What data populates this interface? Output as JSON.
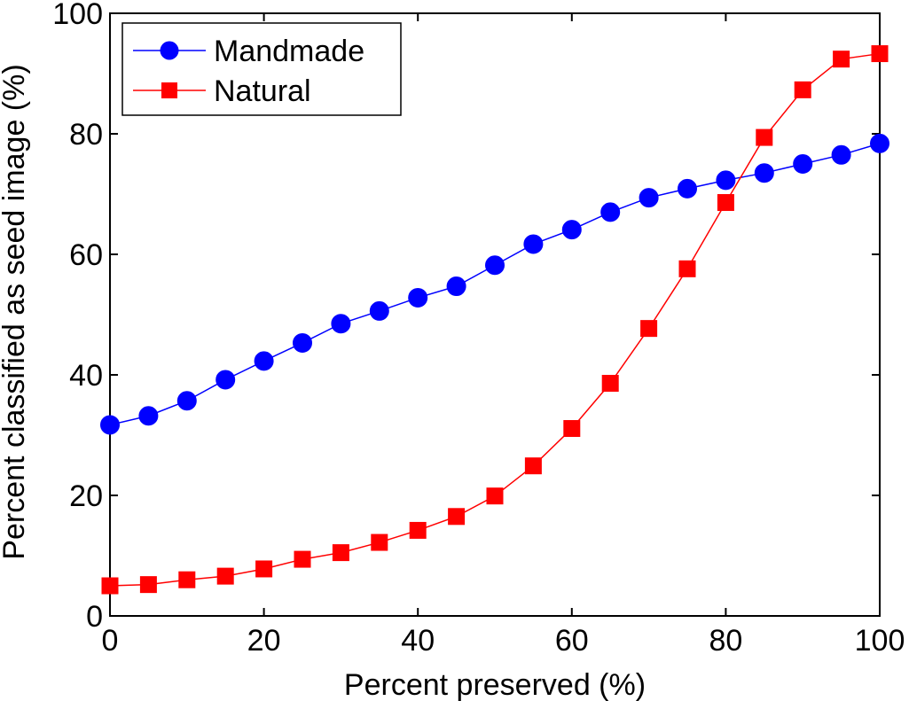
{
  "chart_data": {
    "type": "line",
    "title": "",
    "xlabel": "Percent preserved (%)",
    "ylabel": "Percent classified as seed image (%)",
    "xlim": [
      0,
      100
    ],
    "ylim": [
      0,
      100
    ],
    "xticks": [
      0,
      20,
      40,
      60,
      80,
      100
    ],
    "yticks": [
      0,
      20,
      40,
      60,
      80,
      100
    ],
    "grid": false,
    "legend_position": "top-left",
    "x": [
      0,
      5,
      10,
      15,
      20,
      25,
      30,
      35,
      40,
      45,
      50,
      55,
      60,
      65,
      70,
      75,
      80,
      85,
      90,
      95,
      100
    ],
    "series": [
      {
        "name": "Mandmade",
        "color": "#0000ff",
        "marker": "circle",
        "values": [
          31.7,
          33.2,
          35.7,
          39.2,
          42.3,
          45.3,
          48.5,
          50.6,
          52.8,
          54.7,
          58.2,
          61.7,
          64.1,
          67.0,
          69.4,
          70.9,
          72.3,
          73.5,
          75.0,
          76.5,
          78.4
        ]
      },
      {
        "name": "Natural",
        "color": "#ff0000",
        "marker": "square",
        "values": [
          5.0,
          5.2,
          6.0,
          6.6,
          7.8,
          9.4,
          10.5,
          12.2,
          14.2,
          16.5,
          19.9,
          24.9,
          31.1,
          38.6,
          47.7,
          57.6,
          68.6,
          79.4,
          87.3,
          92.4,
          93.3
        ]
      }
    ]
  }
}
